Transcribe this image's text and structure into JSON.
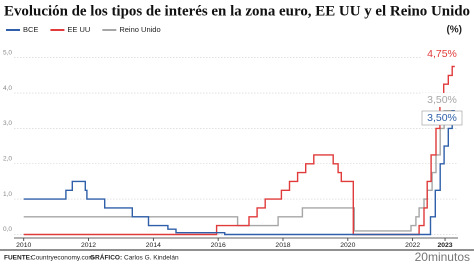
{
  "chart_data": {
    "type": "line",
    "title": "Evolución de los tipos de interés en la zona euro, EE UU y el Reino Unido",
    "y_label": "(%)",
    "source_label": "FUENTE:",
    "source": "Countryeconomy.com",
    "credit_label": "GRÁFICO:",
    "credit": "Carlos G. Kindelán",
    "logo": "20minutos",
    "xlim": [
      2009.7,
      2023.4
    ],
    "xticks": [
      2010,
      2012,
      2014,
      2016,
      2018,
      2020,
      2022,
      2023
    ],
    "ylim": [
      -0.1,
      5.5
    ],
    "yticks": [
      {
        "value": 0,
        "label": "0,0"
      },
      {
        "value": 1,
        "label": "1,0"
      },
      {
        "value": 2,
        "label": "2,0"
      },
      {
        "value": 3,
        "label": "3,0"
      },
      {
        "value": 4,
        "label": "4,0"
      },
      {
        "value": 5,
        "label": "5,0"
      }
    ],
    "grid": true,
    "series": [
      {
        "name": "BCE",
        "color": "#2f5fa8",
        "end_label": "3,50%",
        "end_boxed": true,
        "x": [
          2010,
          2011.3,
          2011.3,
          2011.5,
          2011.5,
          2011.9,
          2011.9,
          2011.95,
          2011.95,
          2012.5,
          2012.5,
          2013.35,
          2013.35,
          2013.85,
          2013.85,
          2014.45,
          2014.45,
          2014.7,
          2014.7,
          2016.2,
          2016.2,
          2022.55,
          2022.55,
          2022.7,
          2022.7,
          2022.85,
          2022.85,
          2022.97,
          2022.97,
          2023.1,
          2023.1,
          2023.22,
          2023.22,
          2023.3
        ],
        "values": [
          1,
          1,
          1.25,
          1.25,
          1.5,
          1.5,
          1.25,
          1.25,
          1,
          1,
          0.75,
          0.75,
          0.5,
          0.5,
          0.25,
          0.25,
          0.15,
          0.15,
          0.05,
          0.05,
          0,
          0,
          0.5,
          0.5,
          1.25,
          1.25,
          2,
          2,
          2.5,
          2.5,
          3,
          3,
          3.5,
          3.5
        ]
      },
      {
        "name": "EE UU",
        "color": "#e03a3a",
        "end_label": "4,75%",
        "end_boxed": false,
        "x": [
          2010,
          2015.95,
          2015.95,
          2016.95,
          2016.95,
          2017.2,
          2017.2,
          2017.45,
          2017.45,
          2017.95,
          2017.95,
          2018.2,
          2018.2,
          2018.45,
          2018.45,
          2018.7,
          2018.7,
          2018.95,
          2018.95,
          2019.55,
          2019.55,
          2019.7,
          2019.7,
          2019.8,
          2019.8,
          2020.17,
          2020.17,
          2022.2,
          2022.2,
          2022.35,
          2022.35,
          2022.45,
          2022.45,
          2022.57,
          2022.57,
          2022.72,
          2022.72,
          2022.84,
          2022.84,
          2022.96,
          2022.96,
          2023.1,
          2023.1,
          2023.22,
          2023.22,
          2023.3
        ],
        "values": [
          0,
          0,
          0.25,
          0.25,
          0.5,
          0.5,
          0.75,
          0.75,
          1,
          1,
          1.25,
          1.25,
          1.5,
          1.5,
          1.75,
          1.75,
          2,
          2,
          2.25,
          2.25,
          2,
          2,
          1.75,
          1.75,
          1.5,
          1.5,
          0,
          0,
          0.25,
          0.25,
          0.75,
          0.75,
          1.5,
          1.5,
          2.25,
          2.25,
          3,
          3,
          3.75,
          3.75,
          4.25,
          4.25,
          4.5,
          4.5,
          4.75,
          4.75
        ]
      },
      {
        "name": "Reino Unido",
        "color": "#a6a6a6",
        "end_label": "3,50%",
        "end_boxed": false,
        "x": [
          2010,
          2016.6,
          2016.6,
          2017.85,
          2017.85,
          2018.6,
          2018.6,
          2020.2,
          2020.2,
          2021.95,
          2021.95,
          2022.1,
          2022.1,
          2022.2,
          2022.2,
          2022.35,
          2022.35,
          2022.45,
          2022.45,
          2022.6,
          2022.6,
          2022.72,
          2022.72,
          2022.85,
          2022.85,
          2022.97,
          2022.97,
          2023.3
        ],
        "values": [
          0.5,
          0.5,
          0.25,
          0.25,
          0.5,
          0.5,
          0.75,
          0.75,
          0.1,
          0.1,
          0.25,
          0.25,
          0.5,
          0.5,
          0.75,
          0.75,
          1,
          1,
          1.25,
          1.25,
          1.75,
          1.75,
          2.25,
          2.25,
          3,
          3,
          3.5,
          3.5
        ]
      }
    ]
  }
}
